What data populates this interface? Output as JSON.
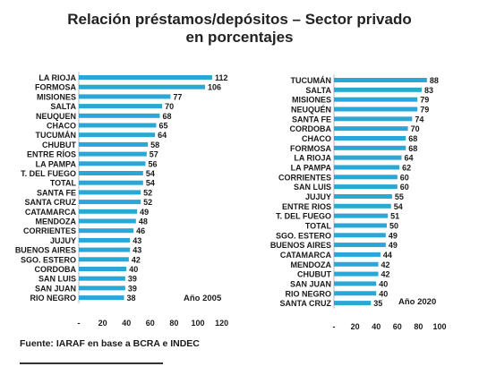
{
  "title_line1": "Relación préstamos/depósitos – Sector privado",
  "title_line2": "en porcentajes",
  "source": "Fuente: IARAF en base a BCRA e INDEC",
  "colors": {
    "bar": "#2aa7d4",
    "text": "#1a1a1a"
  },
  "chart_data": [
    {
      "type": "bar",
      "orientation": "horizontal",
      "annotation": "Año 2005",
      "categories": [
        "LA RIOJA",
        "FORMOSA",
        "MISIONES",
        "SALTA",
        "NEUQUEN",
        "CHACO",
        "TUCUMÁN",
        "CHUBUT",
        "ENTRE RÍOS",
        "LA PAMPA",
        "T. DEL FUEGO",
        "TOTAL",
        "SANTA FE",
        "SANTA CRUZ",
        "CATAMARCA",
        "MENDOZA",
        "CORRIENTES",
        "JUJUY",
        "BUENOS AIRES",
        "SGO. ESTERO",
        "CORDOBA",
        "SAN LUIS",
        "SAN JUAN",
        "RIO NEGRO"
      ],
      "values": [
        112,
        106,
        77,
        70,
        68,
        65,
        64,
        58,
        57,
        56,
        54,
        54,
        52,
        52,
        49,
        48,
        46,
        43,
        43,
        42,
        40,
        39,
        39,
        38
      ],
      "xticks": [
        "-",
        "20",
        "40",
        "60",
        "80",
        "100",
        "120"
      ],
      "xlim": [
        0,
        120
      ]
    },
    {
      "type": "bar",
      "orientation": "horizontal",
      "annotation": "Año 2020",
      "categories": [
        "TUCUMÁN",
        "SALTA",
        "MISIONES",
        "NEUQUÉN",
        "SANTA FE",
        "CORDOBA",
        "CHACO",
        "FORMOSA",
        "LA RIOJA",
        "LA PAMPA",
        "CORRIENTES",
        "SAN LUIS",
        "JUJUY",
        "ENTRE RIOS",
        "T. DEL FUEGO",
        "TOTAL",
        "SGO. ESTERO",
        "BUENOS AIRES",
        "CATAMARCA",
        "MENDOZA",
        "CHUBUT",
        "SAN JUAN",
        "RIO NEGRO",
        "SANTA CRUZ"
      ],
      "values": [
        88,
        83,
        79,
        79,
        74,
        70,
        68,
        68,
        64,
        62,
        60,
        60,
        55,
        54,
        51,
        50,
        49,
        49,
        44,
        42,
        42,
        40,
        40,
        35
      ],
      "xticks": [
        "-",
        "20",
        "40",
        "60",
        "80",
        "100"
      ],
      "xlim": [
        0,
        100
      ]
    }
  ]
}
